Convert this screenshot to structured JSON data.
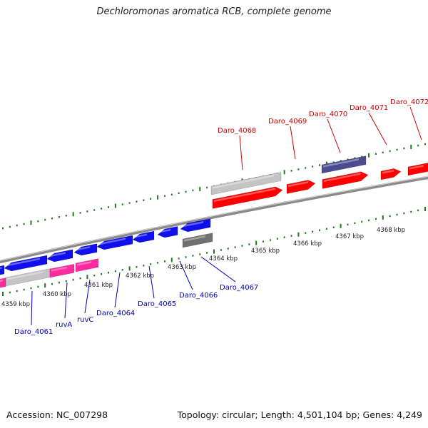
{
  "title": "Dechloromonas aromatica RCB, complete genome",
  "footer": {
    "accession": "Accession: NC_007298",
    "summary": "Topology: circular; Length: 4,501,104 bp; Genes: 4,249"
  },
  "colors": {
    "backbone": "#8a8a8a",
    "forward_label": "#d00000",
    "reverse_label": "#0000b0",
    "tick": "#1f7a1f",
    "gene_red": "#ff0000",
    "gene_blue": "#1010ee",
    "gene_magenta": "#ff2aa0",
    "gene_grey": "#c4c4c4",
    "gene_darkgrey": "#707070",
    "gene_navy": "#4b4b90"
  },
  "kbp_labels": [
    "4359 kbp",
    "4360 kbp",
    "4361 kbp",
    "4362 kbp",
    "4363 kbp",
    "4364 kbp",
    "4365 kbp",
    "4366 kbp",
    "4367 kbp",
    "4368 kbp"
  ],
  "forward_labels": [
    "Daro_4068",
    "Daro_4069",
    "Daro_4070",
    "Daro_4071",
    "Daro_4072"
  ],
  "reverse_labels": [
    "Daro_4061",
    "ruvA",
    "ruvC",
    "Daro_4064",
    "Daro_4065",
    "Daro_4066",
    "Daro_4067"
  ]
}
